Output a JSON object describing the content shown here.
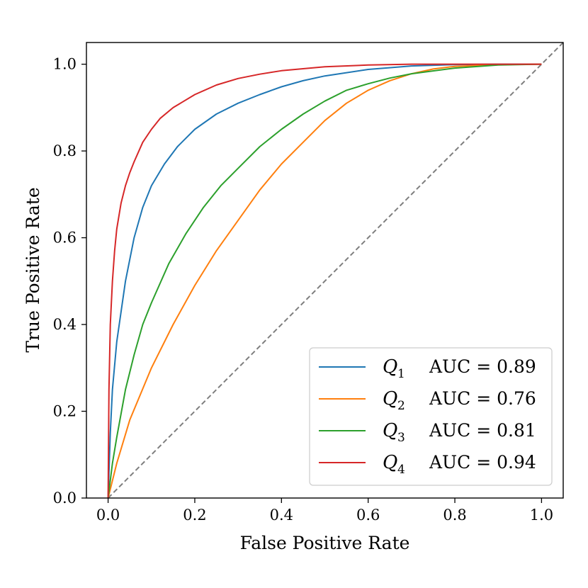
{
  "chart_data": {
    "type": "line",
    "xlabel": "False Positive Rate",
    "ylabel": "True Positive Rate",
    "xlim": [
      -0.05,
      1.05
    ],
    "ylim": [
      0.0,
      1.05
    ],
    "xticks": [
      0.0,
      0.2,
      0.4,
      0.6,
      0.8,
      1.0
    ],
    "yticks": [
      0.0,
      0.2,
      0.4,
      0.6,
      0.8,
      1.0
    ],
    "xtick_labels": [
      "0.0",
      "0.2",
      "0.4",
      "0.6",
      "0.8",
      "1.0"
    ],
    "ytick_labels": [
      "0.0",
      "0.2",
      "0.4",
      "0.6",
      "0.8",
      "1.0"
    ],
    "legend_position": "bottom-right",
    "diagonal": {
      "x": [
        0,
        1.05
      ],
      "y": [
        0,
        1.05
      ],
      "color": "#7f7f7f",
      "style": "dashed"
    },
    "series": [
      {
        "name": "Q",
        "sub": "1",
        "auc_label": "AUC = 0.89",
        "color": "#1f77b4",
        "x": [
          0,
          0.005,
          0.01,
          0.02,
          0.04,
          0.06,
          0.08,
          0.1,
          0.13,
          0.16,
          0.2,
          0.25,
          0.3,
          0.35,
          0.4,
          0.45,
          0.5,
          0.6,
          0.7,
          0.8,
          0.9,
          1.0
        ],
        "y": [
          0,
          0.15,
          0.25,
          0.36,
          0.5,
          0.6,
          0.67,
          0.72,
          0.77,
          0.81,
          0.85,
          0.885,
          0.91,
          0.93,
          0.948,
          0.962,
          0.973,
          0.988,
          0.996,
          0.999,
          1.0,
          1.0
        ]
      },
      {
        "name": "Q",
        "sub": "2",
        "auc_label": "AUC = 0.76",
        "color": "#ff7f0e",
        "x": [
          0,
          0.02,
          0.05,
          0.1,
          0.15,
          0.2,
          0.25,
          0.3,
          0.35,
          0.4,
          0.45,
          0.5,
          0.55,
          0.6,
          0.65,
          0.7,
          0.75,
          0.8,
          0.9,
          1.0
        ],
        "y": [
          0,
          0.08,
          0.18,
          0.3,
          0.4,
          0.49,
          0.57,
          0.64,
          0.71,
          0.77,
          0.82,
          0.87,
          0.91,
          0.94,
          0.962,
          0.978,
          0.989,
          0.995,
          0.999,
          1.0
        ]
      },
      {
        "name": "Q",
        "sub": "3",
        "auc_label": "AUC = 0.81",
        "color": "#2ca02c",
        "x": [
          0,
          0.01,
          0.02,
          0.04,
          0.06,
          0.08,
          0.1,
          0.14,
          0.18,
          0.22,
          0.26,
          0.3,
          0.35,
          0.4,
          0.45,
          0.5,
          0.55,
          0.6,
          0.65,
          0.7,
          0.8,
          0.9,
          1.0
        ],
        "y": [
          0,
          0.08,
          0.14,
          0.25,
          0.33,
          0.4,
          0.45,
          0.54,
          0.61,
          0.67,
          0.72,
          0.76,
          0.81,
          0.85,
          0.885,
          0.915,
          0.94,
          0.955,
          0.968,
          0.978,
          0.991,
          0.998,
          1.0
        ]
      },
      {
        "name": "Q",
        "sub": "4",
        "auc_label": "AUC = 0.94",
        "color": "#d62728",
        "x": [
          0,
          0.002,
          0.005,
          0.01,
          0.015,
          0.02,
          0.03,
          0.04,
          0.05,
          0.06,
          0.08,
          0.1,
          0.12,
          0.15,
          0.2,
          0.25,
          0.3,
          0.35,
          0.4,
          0.5,
          0.6,
          0.7,
          0.8,
          1.0
        ],
        "y": [
          0,
          0.25,
          0.4,
          0.5,
          0.57,
          0.62,
          0.68,
          0.72,
          0.75,
          0.775,
          0.82,
          0.85,
          0.875,
          0.9,
          0.93,
          0.952,
          0.967,
          0.977,
          0.985,
          0.994,
          0.998,
          1.0,
          1.0,
          1.0
        ]
      }
    ]
  }
}
